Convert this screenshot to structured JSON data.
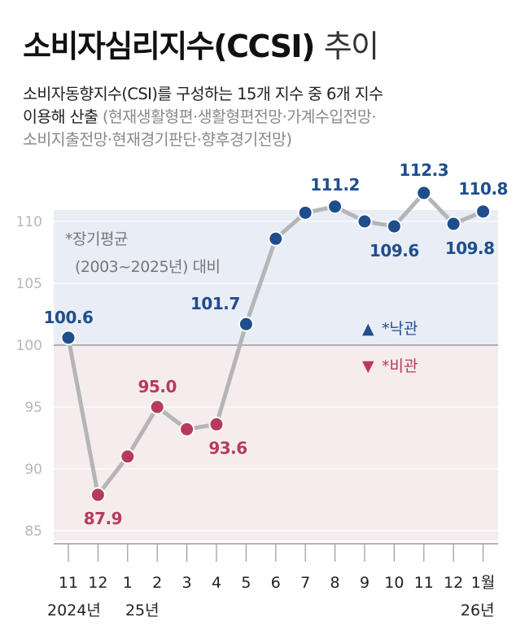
{
  "title": {
    "main": "소비자심리지수(CCSI)",
    "sub": "추이"
  },
  "description": {
    "line1": "소비자동향지수(CSI)를 구성하는 15개 지수 중 6개 지수",
    "line2_main": "이용해 산출",
    "line2_gray": "(현재생활형편·생활형편전망·가계수입전망·",
    "line3_gray": "소비지출전망·현재경기판단·향후경기전망)"
  },
  "note": {
    "line1": "*장기평균",
    "line2": "(2003~2025년) 대비"
  },
  "legend": {
    "optimism": {
      "symbol": "▲",
      "label": "*낙관",
      "color": "#1f4e8c"
    },
    "pessimism": {
      "symbol": "▼",
      "label": "*비관",
      "color": "#b83a5b"
    }
  },
  "colors": {
    "optimism_band": "#e8edf6",
    "pessimism_band": "#f5ecee",
    "line": "#b5b5b5",
    "blue": "#1f4e8c",
    "red": "#b83a5b"
  },
  "chart_data": {
    "type": "line",
    "title": "소비자심리지수(CCSI) 추이",
    "categories": [
      "11",
      "12",
      "1",
      "2",
      "3",
      "4",
      "5",
      "6",
      "7",
      "8",
      "9",
      "10",
      "11",
      "12",
      "1월"
    ],
    "year_labels": [
      "2024년",
      "",
      "25년",
      "",
      "",
      "",
      "",
      "",
      "",
      "",
      "",
      "",
      "",
      "",
      "26년"
    ],
    "values": [
      100.6,
      87.9,
      91.0,
      95.0,
      93.2,
      93.6,
      101.7,
      108.6,
      110.7,
      111.2,
      110.0,
      109.6,
      112.3,
      109.8,
      110.8
    ],
    "value_labels": [
      "100.6",
      "87.9",
      "",
      "95.0",
      "",
      "93.6",
      "101.7",
      "",
      "",
      "111.2",
      "",
      "109.6",
      "112.3",
      "109.8",
      "110.8"
    ],
    "baseline": 100,
    "ylim": [
      85,
      110
    ],
    "yticks": [
      85,
      90,
      95,
      100,
      105,
      110
    ],
    "ytick_labels": [
      "85",
      "90",
      "95",
      "100",
      "105",
      "110"
    ],
    "xlabel": "",
    "ylabel": ""
  }
}
